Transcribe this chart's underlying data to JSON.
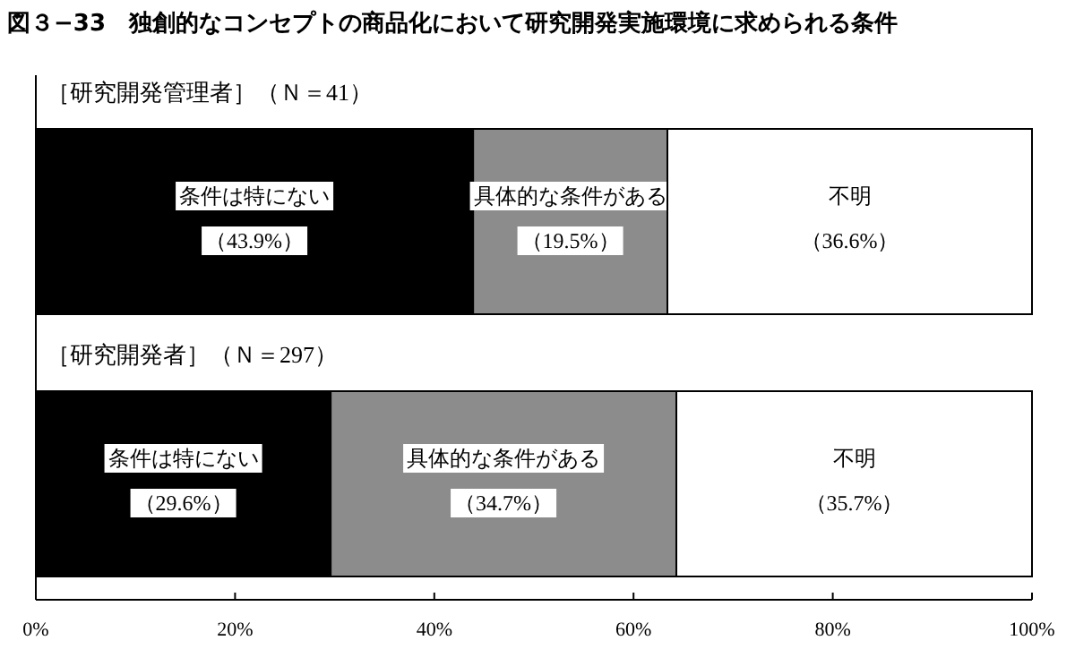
{
  "chart_data": {
    "type": "bar",
    "orientation": "horizontal",
    "stacked": true,
    "title": "図３−33　独創的なコンセプトの商品化において研究開発実施環境に求められる条件",
    "categories": [
      "［研究開発管理者］（Ｎ＝41）",
      "［研究開発者］（Ｎ＝297）"
    ],
    "series": [
      {
        "name": "条件は特にない",
        "color": "#000000",
        "values": [
          43.9,
          29.6
        ],
        "value_labels": [
          "（43.9%）",
          "（29.6%）"
        ]
      },
      {
        "name": "具体的な条件がある",
        "color": "#8c8c8c",
        "values": [
          19.5,
          34.7
        ],
        "value_labels": [
          "（19.5%）",
          "（34.7%）"
        ]
      },
      {
        "name": "不明",
        "color": "#ffffff",
        "values": [
          36.6,
          35.7
        ],
        "value_labels": [
          "（36.6%）",
          "（35.7%）"
        ]
      }
    ],
    "xlim": [
      0,
      100
    ],
    "xticks": [
      {
        "value": 0,
        "label": "0%"
      },
      {
        "value": 20,
        "label": "20%"
      },
      {
        "value": 40,
        "label": "40%"
      },
      {
        "value": 60,
        "label": "60%"
      },
      {
        "value": 80,
        "label": "80%"
      },
      {
        "value": 100,
        "label": "100%"
      }
    ]
  }
}
